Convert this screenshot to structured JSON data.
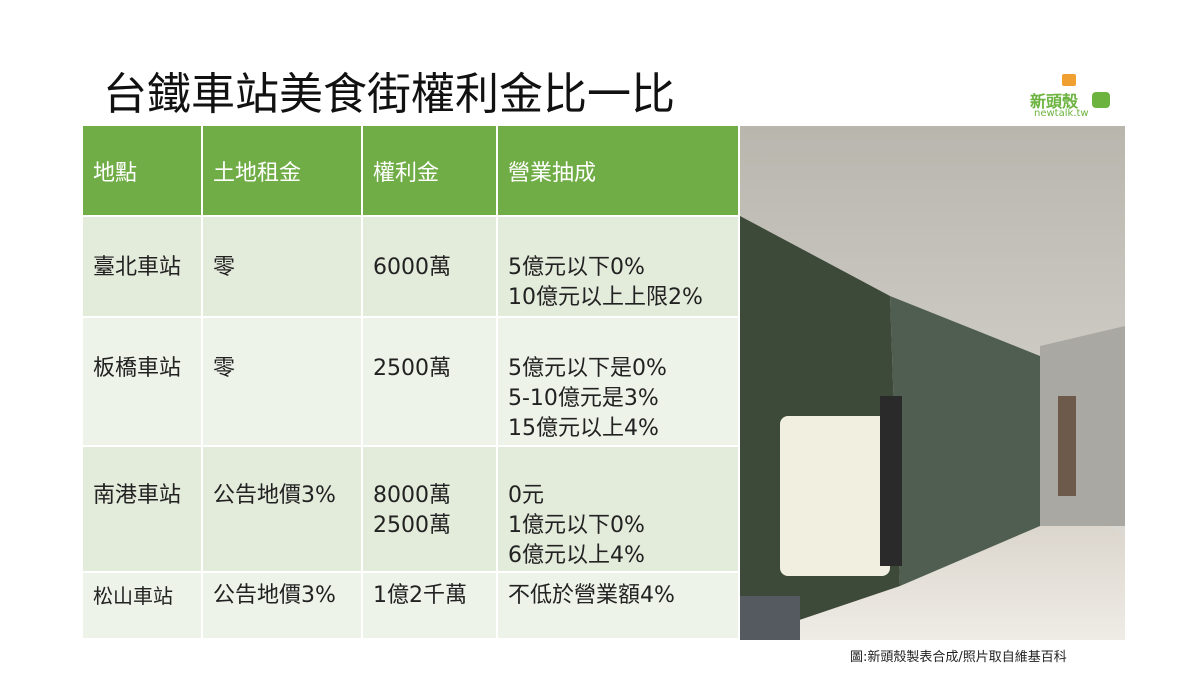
{
  "header": {
    "title": "台鐵車站美食街權利金比一比",
    "logo": "新頭殼",
    "logo_sub": "newtalk.tw"
  },
  "table": {
    "columns": [
      "地點",
      "土地租金",
      "權利金",
      "營業抽成"
    ],
    "rows": [
      [
        [
          "臺北車站"
        ],
        [
          "零"
        ],
        [
          "6000萬"
        ],
        [
          "5億元以下0%",
          "10億元以上上限2%"
        ]
      ],
      [
        [
          "板橋車站"
        ],
        [
          "零"
        ],
        [
          "2500萬"
        ],
        [
          "5億元以下是0%",
          "5-10億元是3%",
          "15億元以上4%"
        ]
      ],
      [
        [
          "南港車站"
        ],
        [
          "公告地價3%"
        ],
        [
          "8000萬",
          "2500萬"
        ],
        [
          "0元",
          "1億元以下0%",
          "6億元以上4%"
        ]
      ],
      [
        [
          "松山車站"
        ],
        [
          "公告地價3%"
        ],
        [
          "1億2千萬"
        ],
        [
          "不低於營業額4%"
        ]
      ]
    ]
  },
  "caption": "圖:新頭殼製表合成/照片取自維基百科"
}
